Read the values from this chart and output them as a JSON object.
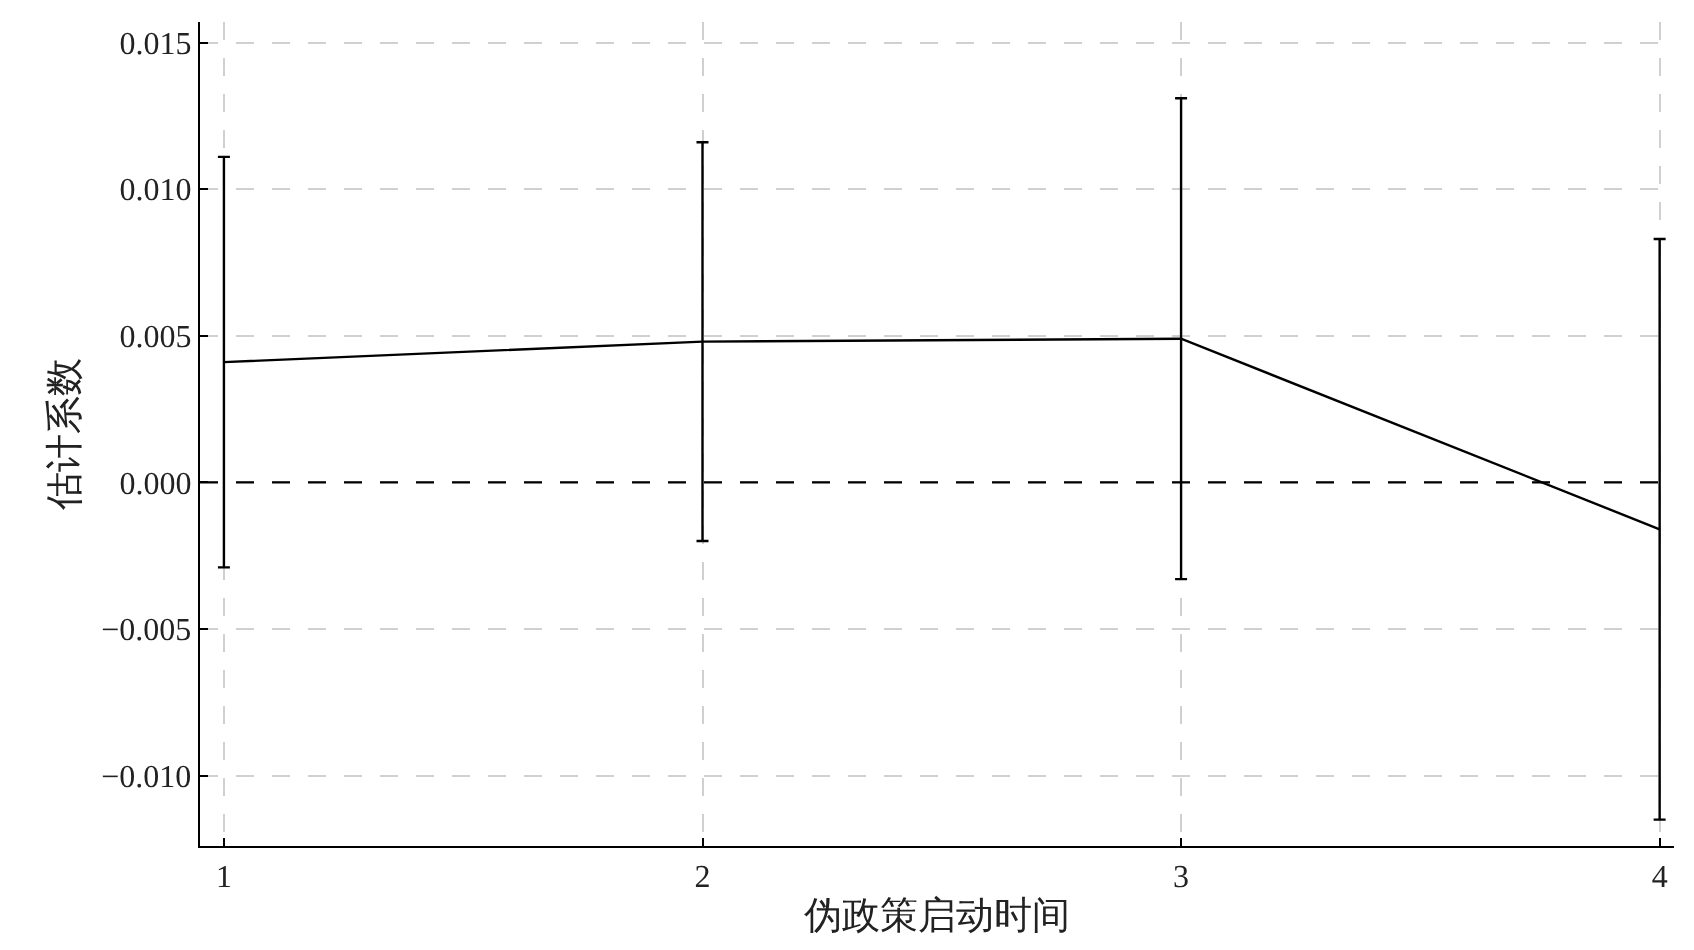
{
  "chart_data": {
    "type": "line",
    "xlabel": "伪政策启动时间",
    "ylabel": "估计系数",
    "x": [
      1,
      2,
      3,
      4
    ],
    "series": [
      {
        "color": "#000000",
        "values": [
          0.0041,
          0.0048,
          0.0049,
          -0.0016
        ],
        "errors": [
          0.007,
          0.0068,
          0.0082,
          0.0099
        ]
      }
    ],
    "xlim": [
      0.95,
      4.03
    ],
    "xticks": [
      1,
      2,
      3,
      4
    ],
    "ylim": [
      -0.0124,
      0.0157
    ],
    "yticks": [
      {
        "value": -0.01,
        "label": "−0.010"
      },
      {
        "value": -0.005,
        "label": "−0.005"
      },
      {
        "value": 0,
        "label": "0.000"
      },
      {
        "value": 0.005,
        "label": "0.005"
      },
      {
        "value": 0.01,
        "label": "0.010"
      },
      {
        "value": 0.015,
        "label": "0.015"
      }
    ],
    "ref_lines": [
      {
        "axis": "y",
        "value": 0,
        "color": "#000000",
        "line_style": "dashed"
      }
    ],
    "grid": true,
    "marker": "none",
    "line_style": "solid"
  }
}
